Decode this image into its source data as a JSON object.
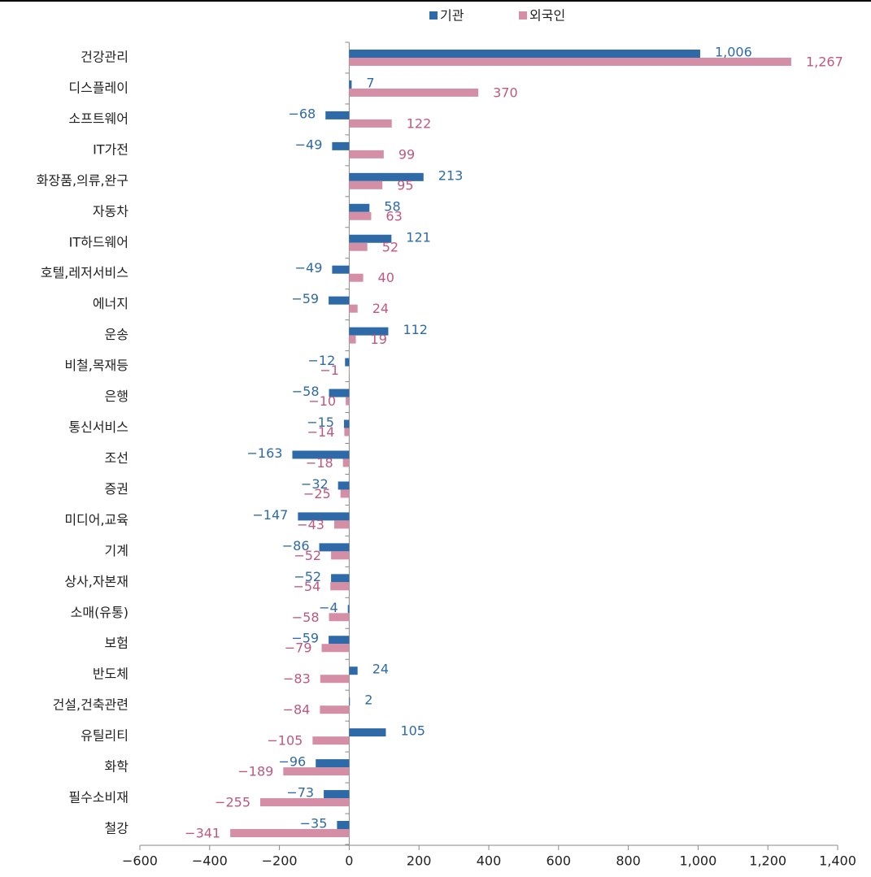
{
  "chart_data": {
    "type": "hbar",
    "categories": [
      "건강관리",
      "디스플레이",
      "소프트웨어",
      "IT가전",
      "화장품,의류,완구",
      "자동차",
      "IT하드웨어",
      "호텔,레저서비스",
      "에너지",
      "운송",
      "비철,목재등",
      "은행",
      "통신서비스",
      "조선",
      "증권",
      "미디어,교육",
      "기계",
      "상사,자본재",
      "소매(유통)",
      "보험",
      "반도체",
      "건설,건축관련",
      "유틸리티",
      "화학",
      "필수소비재",
      "철강"
    ],
    "series": [
      {
        "name": "기관",
        "color": "#2e6aa8",
        "label_color": "#2e6aa8",
        "values": [
          1006,
          7,
          -68,
          -49,
          213,
          58,
          121,
          -49,
          -59,
          112,
          -12,
          -58,
          -15,
          -163,
          -32,
          -147,
          -86,
          -52,
          -4,
          -59,
          24,
          2,
          105,
          -96,
          -73,
          -35
        ],
        "value_labels": [
          "1,006",
          "7",
          "−68",
          "−49",
          "213",
          "58",
          "121",
          "−49",
          "−59",
          "112",
          "−12",
          "−58",
          "−15",
          "−163",
          "−32",
          "−147",
          "−86",
          "−52",
          "−4",
          "−59",
          "24",
          "2",
          "105",
          "−96",
          "−73",
          "−35"
        ]
      },
      {
        "name": "외국인",
        "color": "#d48fa6",
        "label_color": "#c0587e",
        "values": [
          1267,
          370,
          122,
          99,
          95,
          63,
          52,
          40,
          24,
          19,
          -1,
          -10,
          -14,
          -18,
          -25,
          -43,
          -52,
          -54,
          -58,
          -79,
          -83,
          -84,
          -105,
          -189,
          -255,
          -341
        ],
        "value_labels": [
          "1,267",
          "370",
          "122",
          "99",
          "95",
          "63",
          "52",
          "40",
          "24",
          "19",
          "−1",
          "−10",
          "−14",
          "−18",
          "−25",
          "−43",
          "−52",
          "−54",
          "−58",
          "−79",
          "−83",
          "−84",
          "−105",
          "−189",
          "−255",
          "−341"
        ]
      }
    ],
    "xlim": [
      -600,
      1400
    ],
    "xticks": [
      {
        "value": -600,
        "label": "−600"
      },
      {
        "value": -400,
        "label": "−400"
      },
      {
        "value": -200,
        "label": "−200"
      },
      0,
      200,
      400,
      600,
      800,
      {
        "value": 1000,
        "label": "1,000"
      },
      {
        "value": 1200,
        "label": "1,200"
      },
      {
        "value": 1400,
        "label": "1,400"
      }
    ],
    "legend": "top"
  }
}
